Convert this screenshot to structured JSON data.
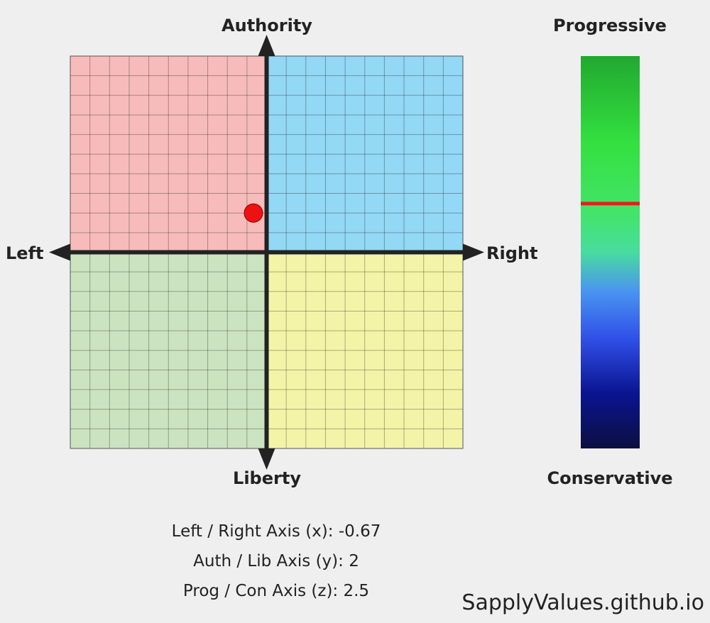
{
  "chart_data": [
    {
      "type": "scatter",
      "axes": {
        "x": {
          "left_label": "Left",
          "right_label": "Right",
          "range": [
            -10,
            10
          ]
        },
        "y": {
          "top_label": "Authority",
          "bottom_label": "Liberty",
          "range": [
            -10,
            10
          ]
        }
      },
      "grid": true,
      "grid_divisions": 20,
      "quadrants": [
        {
          "name": "auth-left",
          "color": "#f7bbbb"
        },
        {
          "name": "auth-right",
          "color": "#93d8f5"
        },
        {
          "name": "lib-left",
          "color": "#cce3c0"
        },
        {
          "name": "lib-right",
          "color": "#f4f4a8"
        }
      ],
      "points": [
        {
          "x": -0.67,
          "y": 2,
          "color": "#ee1111"
        }
      ]
    },
    {
      "type": "bar",
      "orientation": "vertical-gradient",
      "top_label": "Progressive",
      "bottom_label": "Conservative",
      "range": [
        -10,
        10
      ],
      "value": 2.5,
      "marker_color": "#e02020",
      "gradient_stops": [
        {
          "offset": 0.0,
          "color": "#22a830"
        },
        {
          "offset": 0.22,
          "color": "#33e040"
        },
        {
          "offset": 0.4,
          "color": "#44e46a"
        },
        {
          "offset": 0.5,
          "color": "#48dca0"
        },
        {
          "offset": 0.6,
          "color": "#4a94f0"
        },
        {
          "offset": 0.72,
          "color": "#3050e8"
        },
        {
          "offset": 0.86,
          "color": "#0a1490"
        },
        {
          "offset": 1.0,
          "color": "#0c0f40"
        }
      ]
    }
  ],
  "readouts": {
    "x_line": "Left / Right Axis (x): -0.67",
    "y_line": "Auth / Lib Axis (y): 2",
    "z_line": "Prog / Con Axis (z): 2.5"
  },
  "watermark": "SapplyValues.github.io"
}
